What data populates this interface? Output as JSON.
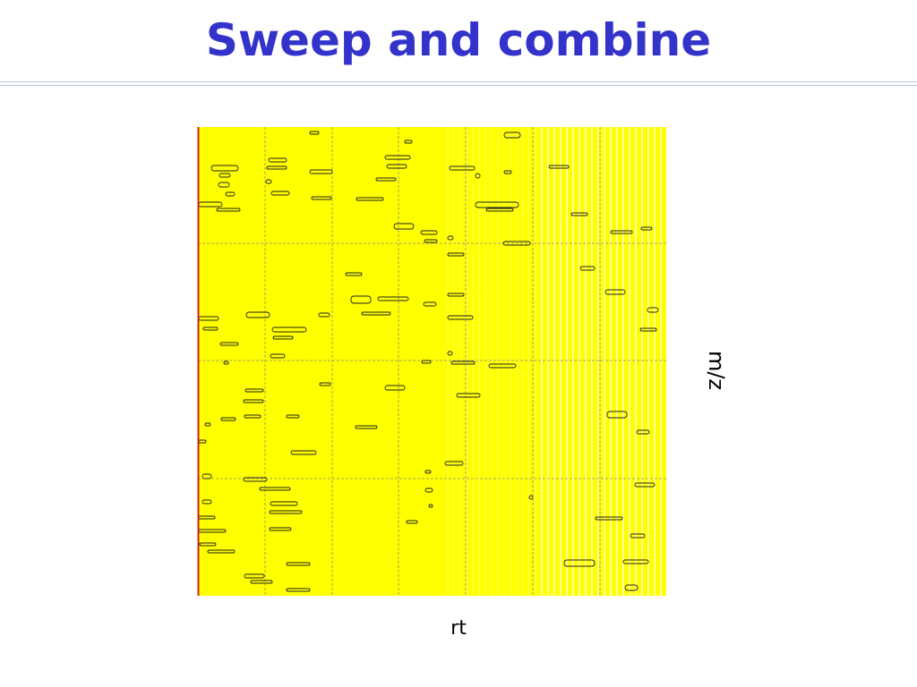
{
  "slide": {
    "title": "Sweep and combine",
    "y_label": "m/z",
    "x_label": "rt"
  }
}
